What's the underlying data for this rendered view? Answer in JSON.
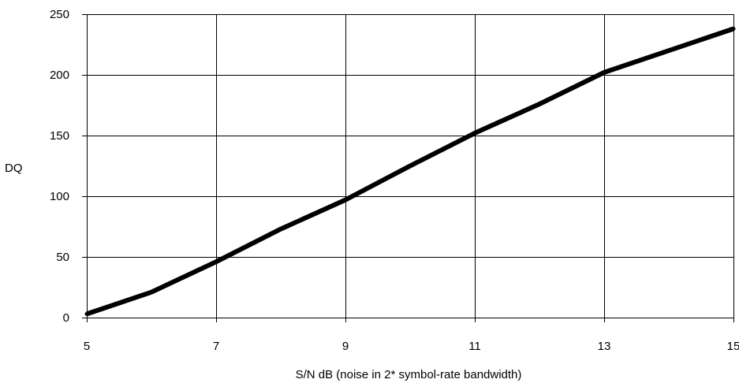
{
  "chart_data": {
    "type": "line",
    "title": "",
    "xlabel": "S/N dB (noise in 2* symbol-rate bandwidth)",
    "ylabel": "DQ",
    "xlim": [
      5,
      15
    ],
    "ylim": [
      0,
      250
    ],
    "xticks": [
      5,
      7,
      9,
      11,
      13,
      15
    ],
    "yticks": [
      0,
      50,
      100,
      150,
      200,
      250
    ],
    "grid": true,
    "legend": "none",
    "series": [
      {
        "color": "#000000",
        "x": [
          5,
          6,
          7,
          8,
          9,
          10,
          11,
          12,
          13,
          14,
          15
        ],
        "y": [
          3,
          21,
          46,
          73,
          97,
          125,
          152,
          176,
          202,
          220,
          238
        ]
      }
    ]
  }
}
